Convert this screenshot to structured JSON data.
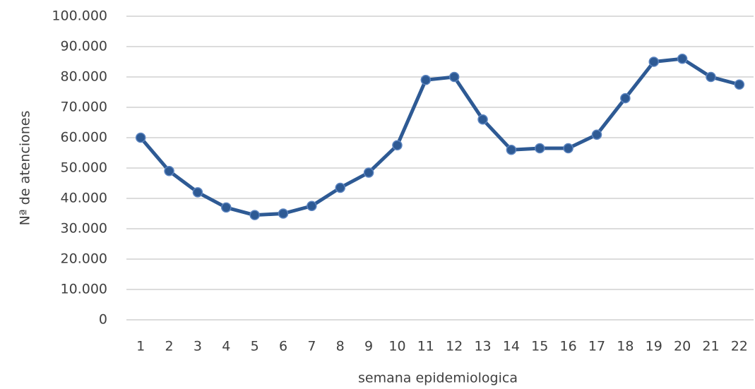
{
  "chart_data": {
    "type": "line",
    "xlabel": "semana epidemiologica",
    "ylabel": "Nª de atenciones",
    "categories": [
      "1",
      "2",
      "3",
      "4",
      "5",
      "6",
      "7",
      "8",
      "9",
      "10",
      "11",
      "12",
      "13",
      "14",
      "15",
      "16",
      "17",
      "18",
      "19",
      "20",
      "21",
      "22"
    ],
    "series": [
      {
        "color": "#2e5a94",
        "values": [
          60000,
          49000,
          42000,
          37000,
          34500,
          35000,
          37500,
          43500,
          48500,
          57500,
          79000,
          80000,
          66000,
          56000,
          56500,
          56500,
          61000,
          73000,
          85000,
          86000,
          80000,
          77500
        ]
      }
    ],
    "ylim": [
      0,
      100000
    ],
    "yticks": [
      0,
      {
        "value": 10000,
        "label": "10.000"
      },
      {
        "value": 20000,
        "label": "20.000"
      },
      {
        "value": 30000,
        "label": "30.000"
      },
      {
        "value": 40000,
        "label": "40.000"
      },
      {
        "value": 50000,
        "label": "50.000"
      },
      {
        "value": 60000,
        "label": "60.000"
      },
      {
        "value": 70000,
        "label": "70.000"
      },
      {
        "value": 80000,
        "label": "80.000"
      },
      {
        "value": 90000,
        "label": "90.000"
      },
      {
        "value": 100000,
        "label": "100.000"
      }
    ],
    "grid": true
  }
}
